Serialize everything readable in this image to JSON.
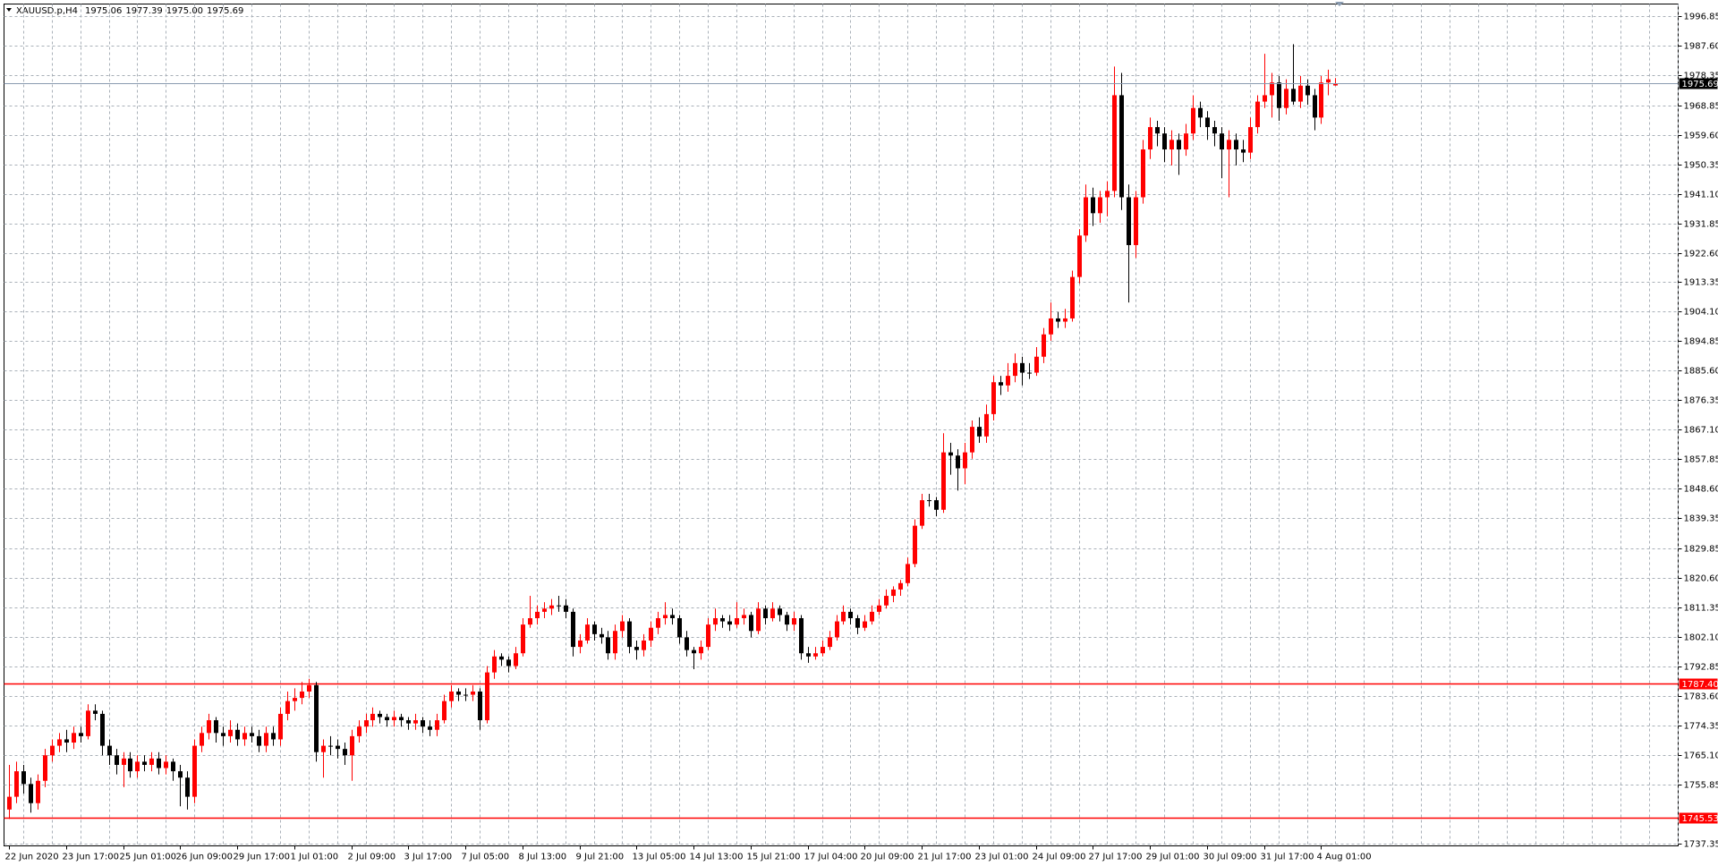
{
  "chart_data": {
    "type": "candlestick",
    "title": "XAUUSD.p,H4",
    "header_ohlc": [
      "1975.06",
      "1977.39",
      "1975.00",
      "1975.69"
    ],
    "up_color": "#ff0000",
    "down_color": "#000000",
    "grid": true,
    "ylim": [
      1736.6,
      2000.6
    ],
    "yticks": [
      1996.85,
      {
        "value": 1987.6,
        "label": "1987.60"
      },
      1978.35,
      1968.85,
      {
        "value": 1959.6,
        "label": "1959.60"
      },
      1950.35,
      {
        "value": 1941.1,
        "label": "1941.10"
      },
      1931.85,
      {
        "value": 1922.6,
        "label": "1922.60"
      },
      1913.35,
      {
        "value": 1904.1,
        "label": "1904.10"
      },
      1894.85,
      {
        "value": 1885.6,
        "label": "1885.60"
      },
      1876.35,
      {
        "value": 1867.1,
        "label": "1867.10"
      },
      1857.85,
      {
        "value": 1848.6,
        "label": "1848.60"
      },
      1839.35,
      1829.85,
      {
        "value": 1820.6,
        "label": "1820.60"
      },
      1811.35,
      {
        "value": 1802.1,
        "label": "1802.10"
      },
      1792.85,
      {
        "value": 1783.6,
        "label": "1783.60"
      },
      1774.35,
      {
        "value": 1765.1,
        "label": "1765.10"
      },
      1755.85,
      1737.35
    ],
    "hlines": [
      {
        "value": 1787.4,
        "label": "1787.40",
        "color": "#ff0000"
      },
      {
        "value": 1745.53,
        "label": "1745.53",
        "color": "#ff0000"
      }
    ],
    "last_price": {
      "value": 1975.69,
      "label": "1975.69",
      "color": "#8a9bb0"
    },
    "categories": [
      "22 Jun 2020",
      null,
      null,
      null,
      null,
      null,
      null,
      null,
      "23 Jun 17:00",
      null,
      null,
      null,
      null,
      null,
      null,
      null,
      "25 Jun 01:00",
      null,
      null,
      null,
      null,
      null,
      null,
      null,
      "26 Jun 09:00",
      null,
      null,
      null,
      null,
      null,
      null,
      null,
      "29 Jun 17:00",
      null,
      null,
      null,
      null,
      null,
      null,
      null,
      "1 Jul 01:00",
      null,
      null,
      null,
      null,
      null,
      null,
      null,
      "2 Jul 09:00",
      null,
      null,
      null,
      null,
      null,
      null,
      null,
      "3 Jul 17:00",
      null,
      null,
      null,
      null,
      null,
      null,
      null,
      "7 Jul 05:00",
      null,
      null,
      null,
      null,
      null,
      null,
      null,
      "8 Jul 13:00",
      null,
      null,
      null,
      null,
      null,
      null,
      null,
      "9 Jul 21:00",
      null,
      null,
      null,
      null,
      null,
      null,
      null,
      "13 Jul 05:00",
      null,
      null,
      null,
      null,
      null,
      null,
      null,
      "14 Jul 13:00",
      null,
      null,
      null,
      null,
      null,
      null,
      null,
      "15 Jul 21:00",
      null,
      null,
      null,
      null,
      null,
      null,
      null,
      "17 Jul 04:00",
      null,
      null,
      null,
      null,
      null,
      null,
      null,
      "20 Jul 09:00",
      null,
      null,
      null,
      null,
      null,
      null,
      null,
      "21 Jul 17:00",
      null,
      null,
      null,
      null,
      null,
      null,
      null,
      "23 Jul 01:00",
      null,
      null,
      null,
      null,
      null,
      null,
      null,
      "24 Jul 09:00",
      null,
      null,
      null,
      null,
      null,
      null,
      null,
      "27 Jul 17:00",
      null,
      null,
      null,
      null,
      null,
      null,
      null,
      "29 Jul 01:00",
      null,
      null,
      null,
      null,
      null,
      null,
      null,
      "30 Jul 09:00",
      null,
      null,
      null,
      null,
      null,
      null,
      null,
      "31 Jul 17:00",
      null,
      null,
      null,
      null,
      null,
      null,
      null,
      "4 Aug 01:00",
      null,
      null
    ],
    "candles": [
      [
        1748,
        1762,
        1745,
        1752
      ],
      [
        1752,
        1763,
        1750,
        1760
      ],
      [
        1760,
        1762,
        1753,
        1756
      ],
      [
        1756,
        1758,
        1747,
        1750
      ],
      [
        1750,
        1759,
        1748,
        1757
      ],
      [
        1757,
        1767,
        1755,
        1765
      ],
      [
        1765,
        1770,
        1763,
        1768
      ],
      [
        1768,
        1772,
        1766,
        1770
      ],
      [
        1770,
        1773,
        1766,
        1769
      ],
      [
        1769,
        1774,
        1767,
        1772
      ],
      [
        1772,
        1774,
        1769,
        1771
      ],
      [
        1771,
        1781,
        1770,
        1779
      ],
      [
        1779,
        1781,
        1776,
        1778
      ],
      [
        1778,
        1779,
        1765,
        1768
      ],
      [
        1768,
        1770,
        1762,
        1765
      ],
      [
        1765,
        1767,
        1759,
        1762
      ],
      [
        1762,
        1766,
        1755,
        1764
      ],
      [
        1764,
        1766,
        1758,
        1760
      ],
      [
        1760,
        1765,
        1758,
        1763
      ],
      [
        1763,
        1765,
        1760,
        1762
      ],
      [
        1762,
        1766,
        1760,
        1764
      ],
      [
        1764,
        1766,
        1759,
        1761
      ],
      [
        1761,
        1765,
        1759,
        1763
      ],
      [
        1763,
        1764,
        1757,
        1760
      ],
      [
        1760,
        1762,
        1749,
        1758
      ],
      [
        1758,
        1760,
        1748,
        1752
      ],
      [
        1752,
        1770,
        1750,
        1768
      ],
      [
        1768,
        1774,
        1766,
        1772
      ],
      [
        1772,
        1778,
        1770,
        1776
      ],
      [
        1776,
        1777,
        1769,
        1772
      ],
      [
        1772,
        1774,
        1768,
        1771
      ],
      [
        1771,
        1776,
        1769,
        1773
      ],
      [
        1773,
        1775,
        1768,
        1770
      ],
      [
        1770,
        1774,
        1768,
        1772
      ],
      [
        1772,
        1774,
        1769,
        1771
      ],
      [
        1771,
        1773,
        1766,
        1768
      ],
      [
        1768,
        1774,
        1766,
        1772
      ],
      [
        1772,
        1774,
        1768,
        1770
      ],
      [
        1770,
        1780,
        1768,
        1778
      ],
      [
        1778,
        1785,
        1776,
        1782
      ],
      [
        1782,
        1786,
        1779,
        1783
      ],
      [
        1783,
        1788,
        1781,
        1785
      ],
      [
        1785,
        1789,
        1783,
        1787
      ],
      [
        1787,
        1788,
        1763,
        1766
      ],
      [
        1766,
        1770,
        1758,
        1768
      ],
      [
        1768,
        1771,
        1765,
        1768
      ],
      [
        1768,
        1770,
        1764,
        1767
      ],
      [
        1767,
        1769,
        1762,
        1765
      ],
      [
        1765,
        1773,
        1757,
        1771
      ],
      [
        1771,
        1776,
        1769,
        1774
      ],
      [
        1774,
        1778,
        1772,
        1776
      ],
      [
        1776,
        1780,
        1774,
        1778
      ],
      [
        1778,
        1779,
        1775,
        1777
      ],
      [
        1777,
        1778,
        1774,
        1776
      ],
      [
        1776,
        1779,
        1774,
        1777
      ],
      [
        1777,
        1778,
        1774,
        1776
      ],
      [
        1776,
        1777,
        1773,
        1775
      ],
      [
        1775,
        1778,
        1773,
        1776
      ],
      [
        1776,
        1777,
        1772,
        1774
      ],
      [
        1774,
        1776,
        1771,
        1773
      ],
      [
        1773,
        1778,
        1771,
        1776
      ],
      [
        1776,
        1784,
        1775,
        1782
      ],
      [
        1782,
        1787,
        1780,
        1785
      ],
      [
        1785,
        1786,
        1782,
        1784
      ],
      [
        1784,
        1786,
        1782,
        1784
      ],
      [
        1784,
        1787,
        1782,
        1785
      ],
      [
        1785,
        1786,
        1773,
        1776
      ],
      [
        1776,
        1793,
        1775,
        1791
      ],
      [
        1791,
        1798,
        1789,
        1796
      ],
      [
        1796,
        1797,
        1793,
        1795
      ],
      [
        1795,
        1796,
        1791,
        1793
      ],
      [
        1793,
        1799,
        1792,
        1797
      ],
      [
        1797,
        1808,
        1796,
        1806
      ],
      [
        1806,
        1815,
        1805,
        1808
      ],
      [
        1808,
        1812,
        1806,
        1810
      ],
      [
        1810,
        1813,
        1808,
        1811
      ],
      [
        1811,
        1814,
        1809,
        1812
      ],
      [
        1812,
        1815,
        1810,
        1812
      ],
      [
        1812,
        1814,
        1808,
        1810
      ],
      [
        1810,
        1811,
        1796,
        1799
      ],
      [
        1799,
        1803,
        1797,
        1801
      ],
      [
        1801,
        1808,
        1800,
        1806
      ],
      [
        1806,
        1807,
        1801,
        1803
      ],
      [
        1803,
        1805,
        1800,
        1802
      ],
      [
        1802,
        1804,
        1795,
        1797
      ],
      [
        1797,
        1806,
        1795,
        1804
      ],
      [
        1804,
        1809,
        1802,
        1807
      ],
      [
        1807,
        1808,
        1797,
        1799
      ],
      [
        1799,
        1801,
        1795,
        1798
      ],
      [
        1798,
        1803,
        1796,
        1801
      ],
      [
        1801,
        1807,
        1799,
        1805
      ],
      [
        1805,
        1810,
        1803,
        1808
      ],
      [
        1808,
        1813,
        1806,
        1809
      ],
      [
        1809,
        1811,
        1806,
        1808
      ],
      [
        1808,
        1809,
        1800,
        1802
      ],
      [
        1802,
        1804,
        1796,
        1798
      ],
      [
        1798,
        1799,
        1792,
        1797
      ],
      [
        1797,
        1801,
        1795,
        1799
      ],
      [
        1799,
        1808,
        1798,
        1806
      ],
      [
        1806,
        1811,
        1804,
        1808
      ],
      [
        1808,
        1809,
        1805,
        1807
      ],
      [
        1807,
        1809,
        1804,
        1806
      ],
      [
        1806,
        1813,
        1805,
        1808
      ],
      [
        1808,
        1811,
        1806,
        1809
      ],
      [
        1809,
        1810,
        1802,
        1804
      ],
      [
        1804,
        1813,
        1803,
        1811
      ],
      [
        1811,
        1812,
        1806,
        1808
      ],
      [
        1808,
        1813,
        1807,
        1811
      ],
      [
        1811,
        1812,
        1807,
        1809
      ],
      [
        1809,
        1810,
        1804,
        1806
      ],
      [
        1806,
        1810,
        1804,
        1808
      ],
      [
        1808,
        1809,
        1795,
        1797
      ],
      [
        1797,
        1799,
        1794,
        1796
      ],
      [
        1796,
        1799,
        1795,
        1797
      ],
      [
        1797,
        1801,
        1796,
        1799
      ],
      [
        1799,
        1804,
        1798,
        1802
      ],
      [
        1802,
        1809,
        1801,
        1807
      ],
      [
        1807,
        1812,
        1806,
        1810
      ],
      [
        1810,
        1811,
        1806,
        1808
      ],
      [
        1808,
        1809,
        1803,
        1805
      ],
      [
        1805,
        1809,
        1804,
        1807
      ],
      [
        1807,
        1812,
        1806,
        1810
      ],
      [
        1810,
        1814,
        1809,
        1812
      ],
      [
        1812,
        1817,
        1811,
        1815
      ],
      [
        1815,
        1818,
        1813,
        1817
      ],
      [
        1817,
        1820,
        1815,
        1819
      ],
      [
        1819,
        1827,
        1818,
        1825
      ],
      [
        1825,
        1839,
        1824,
        1837
      ],
      [
        1837,
        1847,
        1836,
        1845
      ],
      [
        1845,
        1847,
        1843,
        1845
      ],
      [
        1845,
        1846,
        1840,
        1842
      ],
      [
        1842,
        1866,
        1841,
        1860
      ],
      [
        1860,
        1863,
        1853,
        1859
      ],
      [
        1859,
        1861,
        1848,
        1855
      ],
      [
        1855,
        1863,
        1850,
        1860
      ],
      [
        1860,
        1870,
        1858,
        1868
      ],
      [
        1868,
        1871,
        1863,
        1865
      ],
      [
        1865,
        1875,
        1863,
        1872
      ],
      [
        1872,
        1884,
        1870,
        1882
      ],
      [
        1882,
        1884,
        1878,
        1881
      ],
      [
        1881,
        1888,
        1879,
        1884
      ],
      [
        1884,
        1891,
        1882,
        1888
      ],
      [
        1888,
        1890,
        1881,
        1885
      ],
      [
        1885,
        1888,
        1883,
        1885
      ],
      [
        1885,
        1893,
        1884,
        1890
      ],
      [
        1890,
        1899,
        1888,
        1897
      ],
      [
        1897,
        1907,
        1895,
        1902
      ],
      [
        1902,
        1904,
        1899,
        1901
      ],
      [
        1901,
        1905,
        1899,
        1902
      ],
      [
        1902,
        1917,
        1901,
        1915
      ],
      [
        1915,
        1930,
        1913,
        1928
      ],
      [
        1928,
        1944,
        1926,
        1940
      ],
      [
        1940,
        1943,
        1931,
        1935
      ],
      [
        1935,
        1942,
        1932,
        1940
      ],
      [
        1940,
        1945,
        1934,
        1942
      ],
      [
        1942,
        1981,
        1940,
        1972
      ],
      [
        1972,
        1979,
        1936,
        1940
      ],
      [
        1940,
        1944,
        1907,
        1925
      ],
      [
        1925,
        1942,
        1921,
        1940
      ],
      [
        1940,
        1958,
        1938,
        1955
      ],
      [
        1955,
        1965,
        1952,
        1962
      ],
      [
        1962,
        1964,
        1956,
        1960
      ],
      [
        1960,
        1962,
        1951,
        1955
      ],
      [
        1955,
        1961,
        1950,
        1958
      ],
      [
        1958,
        1960,
        1947,
        1955
      ],
      [
        1955,
        1963,
        1953,
        1960
      ],
      [
        1960,
        1972,
        1958,
        1968
      ],
      [
        1968,
        1970,
        1962,
        1965
      ],
      [
        1965,
        1967,
        1958,
        1962
      ],
      [
        1962,
        1964,
        1956,
        1960
      ],
      [
        1960,
        1962,
        1946,
        1955
      ],
      [
        1955,
        1961,
        1940,
        1958
      ],
      [
        1958,
        1960,
        1950,
        1955
      ],
      [
        1955,
        1958,
        1951,
        1954
      ],
      [
        1954,
        1965,
        1952,
        1962
      ],
      [
        1962,
        1972,
        1960,
        1970
      ],
      [
        1970,
        1985,
        1968,
        1972
      ],
      [
        1972,
        1979,
        1965,
        1976
      ],
      [
        1976,
        1978,
        1964,
        1968
      ],
      [
        1968,
        1977,
        1966,
        1974
      ],
      [
        1974,
        1988,
        1969,
        1970
      ],
      [
        1970,
        1978,
        1968,
        1975
      ],
      [
        1975,
        1977,
        1969,
        1972
      ],
      [
        1972,
        1974,
        1961,
        1965
      ],
      [
        1965,
        1978,
        1963,
        1976
      ],
      [
        1976,
        1980,
        1972,
        1977
      ],
      [
        1975.06,
        1977.39,
        1975.0,
        1975.69
      ]
    ]
  }
}
